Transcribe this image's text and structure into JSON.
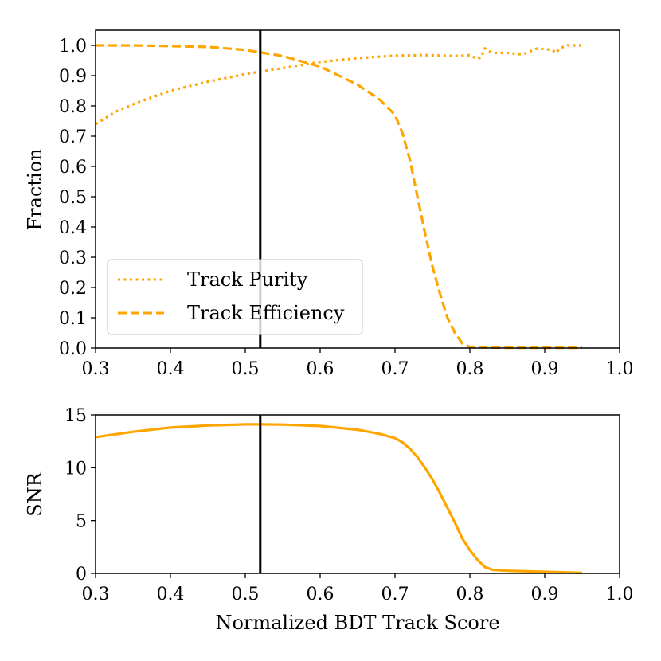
{
  "chart_data": [
    {
      "type": "line",
      "ylabel": "Fraction",
      "xlabel": "",
      "xlim": [
        0.3,
        1.0
      ],
      "ylim": [
        0.0,
        1.05
      ],
      "xticks": [
        "0.3",
        "0.4",
        "0.5",
        "0.6",
        "0.7",
        "0.8",
        "0.9",
        "1.0"
      ],
      "yticks": [
        "0.0",
        "0.1",
        "0.2",
        "0.3",
        "0.4",
        "0.5",
        "0.6",
        "0.7",
        "0.8",
        "0.9",
        "1.0"
      ],
      "vline_x": 0.52,
      "legend_position": "lower-left",
      "series": [
        {
          "name": "Track Purity",
          "style": "dotted",
          "color": "#FFA500",
          "x": [
            0.3,
            0.33,
            0.36,
            0.4,
            0.45,
            0.5,
            0.55,
            0.6,
            0.65,
            0.7,
            0.74,
            0.78,
            0.8,
            0.81,
            0.815,
            0.82,
            0.83,
            0.85,
            0.87,
            0.89,
            0.91,
            0.915,
            0.92,
            0.93,
            0.95
          ],
          "values": [
            0.74,
            0.785,
            0.815,
            0.85,
            0.88,
            0.905,
            0.925,
            0.945,
            0.958,
            0.966,
            0.968,
            0.965,
            0.968,
            0.955,
            0.96,
            0.99,
            0.975,
            0.975,
            0.97,
            0.99,
            0.985,
            0.975,
            0.99,
            1.0,
            1.0
          ]
        },
        {
          "name": "Track Efficiency",
          "style": "dashed",
          "color": "#FFA500",
          "x": [
            0.3,
            0.35,
            0.4,
            0.45,
            0.5,
            0.55,
            0.6,
            0.65,
            0.68,
            0.7,
            0.71,
            0.72,
            0.73,
            0.74,
            0.75,
            0.76,
            0.77,
            0.78,
            0.79,
            0.8,
            0.82,
            0.85,
            0.9,
            0.95
          ],
          "values": [
            1.0,
            1.0,
            0.998,
            0.995,
            0.985,
            0.965,
            0.93,
            0.87,
            0.82,
            0.77,
            0.71,
            0.62,
            0.5,
            0.38,
            0.27,
            0.18,
            0.1,
            0.05,
            0.015,
            0.004,
            0.002,
            0.001,
            0.001,
            0.001
          ]
        }
      ]
    },
    {
      "type": "line",
      "ylabel": "SNR",
      "xlabel": "Normalized BDT Track Score",
      "xlim": [
        0.3,
        1.0
      ],
      "ylim": [
        0,
        15
      ],
      "xticks": [
        "0.3",
        "0.4",
        "0.5",
        "0.6",
        "0.7",
        "0.8",
        "0.9",
        "1.0"
      ],
      "yticks": [
        "0",
        "5",
        "10",
        "15"
      ],
      "vline_x": 0.52,
      "series": [
        {
          "name": "SNR",
          "style": "solid",
          "color": "#FFA500",
          "x": [
            0.3,
            0.35,
            0.4,
            0.45,
            0.5,
            0.52,
            0.55,
            0.6,
            0.65,
            0.68,
            0.7,
            0.71,
            0.72,
            0.73,
            0.74,
            0.75,
            0.76,
            0.77,
            0.78,
            0.79,
            0.8,
            0.81,
            0.82,
            0.83,
            0.85,
            0.9,
            0.95
          ],
          "values": [
            12.9,
            13.4,
            13.8,
            14.0,
            14.1,
            14.1,
            14.08,
            13.95,
            13.6,
            13.2,
            12.8,
            12.4,
            11.8,
            11.0,
            10.0,
            8.9,
            7.6,
            6.2,
            4.8,
            3.3,
            2.2,
            1.3,
            0.6,
            0.35,
            0.25,
            0.15,
            0.05
          ]
        }
      ]
    }
  ]
}
